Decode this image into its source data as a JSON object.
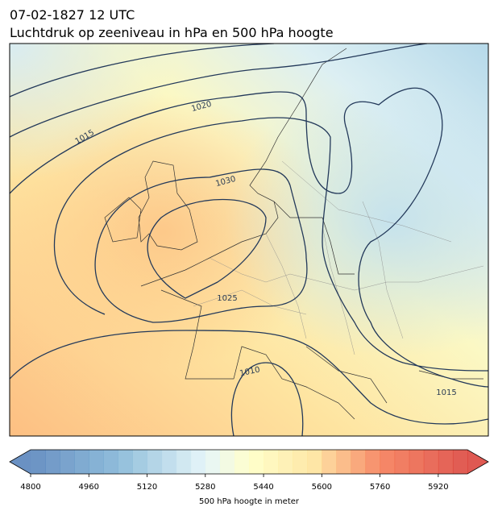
{
  "header": {
    "date": "07-02-1827 12 UTC",
    "title": "Luchtdruk op zeeniveau in hPa en 500 hPa hoogte"
  },
  "map": {
    "contour_labels": [
      "1020",
      "1015",
      "1030",
      "1025",
      "1010",
      "1015"
    ]
  },
  "colorbar": {
    "range": [
      4800,
      6000
    ],
    "ticks": [
      4800,
      4960,
      5120,
      5280,
      5440,
      5600,
      5760,
      5920
    ],
    "label": "500 hPa hoogte in meter"
  }
}
